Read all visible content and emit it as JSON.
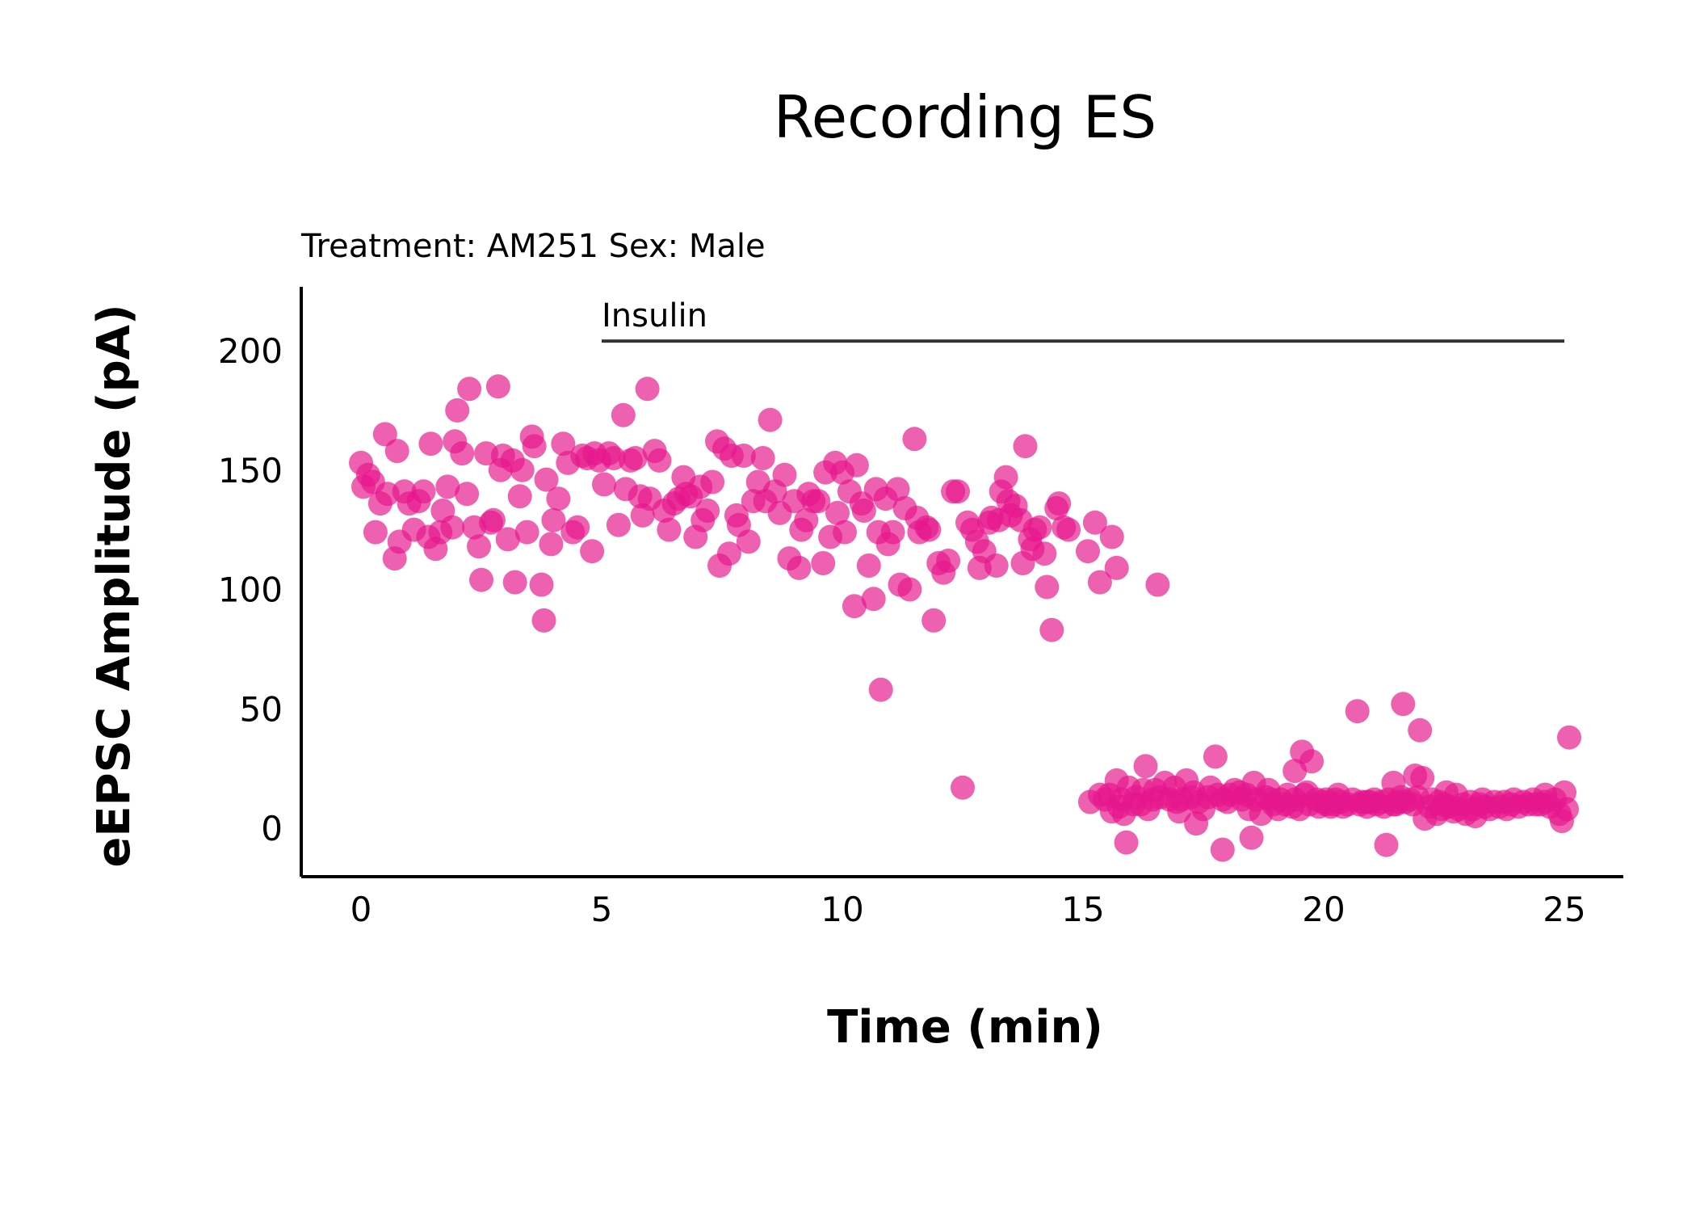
{
  "chart_data": {
    "type": "scatter",
    "title": "Recording ES",
    "subtitle": "Treatment: AM251  Sex: Male",
    "xlabel": "Time (min)",
    "ylabel": "eEPSC Amplitude (pA)",
    "xlim": [
      -1.2,
      26.2
    ],
    "ylim": [
      -20,
      225
    ],
    "xticks": [
      0,
      5,
      10,
      15,
      20,
      25
    ],
    "yticks": [
      0,
      50,
      100,
      150,
      200
    ],
    "grid": false,
    "legend": "none",
    "point_color": "#e6168c",
    "annotation": {
      "label": "Insulin",
      "x_start": 5,
      "x_end": 25,
      "y": 204
    },
    "points": [
      [
        0.0,
        153
      ],
      [
        0.05,
        143
      ],
      [
        0.15,
        148
      ],
      [
        0.25,
        145
      ],
      [
        0.3,
        124
      ],
      [
        0.4,
        136
      ],
      [
        0.5,
        165
      ],
      [
        0.55,
        140
      ],
      [
        0.7,
        113
      ],
      [
        0.75,
        158
      ],
      [
        0.8,
        120
      ],
      [
        0.9,
        141
      ],
      [
        1.0,
        136
      ],
      [
        1.1,
        125
      ],
      [
        1.2,
        137
      ],
      [
        1.3,
        141
      ],
      [
        1.4,
        122
      ],
      [
        1.45,
        161
      ],
      [
        1.55,
        117
      ],
      [
        1.65,
        124
      ],
      [
        1.7,
        133
      ],
      [
        1.8,
        143
      ],
      [
        1.9,
        126
      ],
      [
        1.95,
        162
      ],
      [
        2.0,
        175
      ],
      [
        2.1,
        157
      ],
      [
        2.2,
        140
      ],
      [
        2.25,
        184
      ],
      [
        2.35,
        126
      ],
      [
        2.45,
        118
      ],
      [
        2.5,
        104
      ],
      [
        2.6,
        157
      ],
      [
        2.7,
        128
      ],
      [
        2.75,
        129
      ],
      [
        2.85,
        185
      ],
      [
        2.9,
        150
      ],
      [
        2.95,
        156
      ],
      [
        3.05,
        121
      ],
      [
        3.15,
        154
      ],
      [
        3.2,
        103
      ],
      [
        3.3,
        139
      ],
      [
        3.35,
        150
      ],
      [
        3.45,
        124
      ],
      [
        3.55,
        164
      ],
      [
        3.6,
        160
      ],
      [
        3.75,
        102
      ],
      [
        3.8,
        87
      ],
      [
        3.85,
        146
      ],
      [
        3.95,
        119
      ],
      [
        4.0,
        129
      ],
      [
        4.1,
        138
      ],
      [
        4.2,
        161
      ],
      [
        4.3,
        153
      ],
      [
        4.4,
        124
      ],
      [
        4.5,
        126
      ],
      [
        4.6,
        156
      ],
      [
        4.7,
        155
      ],
      [
        4.8,
        116
      ],
      [
        4.85,
        157
      ],
      [
        4.95,
        154
      ],
      [
        5.05,
        144
      ],
      [
        5.15,
        157
      ],
      [
        5.25,
        155
      ],
      [
        5.35,
        127
      ],
      [
        5.45,
        173
      ],
      [
        5.5,
        142
      ],
      [
        5.6,
        154
      ],
      [
        5.7,
        155
      ],
      [
        5.8,
        139
      ],
      [
        5.85,
        131
      ],
      [
        5.95,
        184
      ],
      [
        6.0,
        138
      ],
      [
        6.1,
        158
      ],
      [
        6.2,
        154
      ],
      [
        6.3,
        133
      ],
      [
        6.4,
        125
      ],
      [
        6.5,
        136
      ],
      [
        6.6,
        138
      ],
      [
        6.7,
        147
      ],
      [
        6.75,
        140
      ],
      [
        6.85,
        139
      ],
      [
        6.95,
        122
      ],
      [
        7.05,
        143
      ],
      [
        7.1,
        129
      ],
      [
        7.2,
        133
      ],
      [
        7.3,
        145
      ],
      [
        7.4,
        162
      ],
      [
        7.45,
        110
      ],
      [
        7.55,
        159
      ],
      [
        7.65,
        115
      ],
      [
        7.7,
        156
      ],
      [
        7.8,
        131
      ],
      [
        7.85,
        127
      ],
      [
        7.95,
        156
      ],
      [
        8.05,
        120
      ],
      [
        8.15,
        137
      ],
      [
        8.25,
        145
      ],
      [
        8.35,
        155
      ],
      [
        8.4,
        137
      ],
      [
        8.5,
        171
      ],
      [
        8.6,
        141
      ],
      [
        8.7,
        132
      ],
      [
        8.8,
        148
      ],
      [
        8.9,
        113
      ],
      [
        9.0,
        137
      ],
      [
        9.1,
        109
      ],
      [
        9.15,
        125
      ],
      [
        9.25,
        129
      ],
      [
        9.3,
        140
      ],
      [
        9.4,
        137
      ],
      [
        9.5,
        137
      ],
      [
        9.6,
        111
      ],
      [
        9.65,
        149
      ],
      [
        9.75,
        122
      ],
      [
        9.85,
        153
      ],
      [
        9.9,
        132
      ],
      [
        10.0,
        149
      ],
      [
        10.05,
        124
      ],
      [
        10.15,
        141
      ],
      [
        10.25,
        93
      ],
      [
        10.3,
        152
      ],
      [
        10.4,
        136
      ],
      [
        10.45,
        133
      ],
      [
        10.55,
        110
      ],
      [
        10.65,
        96
      ],
      [
        10.7,
        142
      ],
      [
        10.75,
        124
      ],
      [
        10.8,
        58
      ],
      [
        10.9,
        138
      ],
      [
        10.95,
        119
      ],
      [
        11.05,
        124
      ],
      [
        11.15,
        142
      ],
      [
        11.2,
        102
      ],
      [
        11.3,
        134
      ],
      [
        11.4,
        100
      ],
      [
        11.5,
        163
      ],
      [
        11.55,
        130
      ],
      [
        11.6,
        124
      ],
      [
        11.75,
        126
      ],
      [
        11.8,
        125
      ],
      [
        11.9,
        87
      ],
      [
        12.0,
        111
      ],
      [
        12.1,
        107
      ],
      [
        12.2,
        112
      ],
      [
        12.3,
        141
      ],
      [
        12.4,
        141
      ],
      [
        12.5,
        17
      ],
      [
        12.6,
        128
      ],
      [
        12.7,
        125
      ],
      [
        12.8,
        120
      ],
      [
        12.85,
        109
      ],
      [
        12.95,
        116
      ],
      [
        13.05,
        128
      ],
      [
        13.1,
        130
      ],
      [
        13.2,
        110
      ],
      [
        13.25,
        129
      ],
      [
        13.3,
        141
      ],
      [
        13.4,
        147
      ],
      [
        13.45,
        137
      ],
      [
        13.5,
        131
      ],
      [
        13.6,
        135
      ],
      [
        13.7,
        129
      ],
      [
        13.75,
        111
      ],
      [
        13.8,
        160
      ],
      [
        13.9,
        121
      ],
      [
        13.95,
        117
      ],
      [
        14.0,
        125
      ],
      [
        14.1,
        126
      ],
      [
        14.2,
        115
      ],
      [
        14.25,
        101
      ],
      [
        14.35,
        83
      ],
      [
        14.45,
        134
      ],
      [
        14.5,
        136
      ],
      [
        14.6,
        126
      ],
      [
        14.7,
        125
      ],
      [
        15.1,
        116
      ],
      [
        15.25,
        128
      ],
      [
        15.35,
        103
      ],
      [
        15.6,
        122
      ],
      [
        15.7,
        109
      ],
      [
        16.55,
        102
      ],
      [
        15.15,
        11
      ],
      [
        15.35,
        14
      ],
      [
        15.45,
        12
      ],
      [
        15.55,
        14
      ],
      [
        15.6,
        7
      ],
      [
        15.7,
        20
      ],
      [
        15.75,
        9
      ],
      [
        15.8,
        12
      ],
      [
        15.85,
        6
      ],
      [
        15.95,
        17
      ],
      [
        16.05,
        10
      ],
      [
        16.1,
        13
      ],
      [
        16.2,
        10
      ],
      [
        16.25,
        16
      ],
      [
        16.35,
        8
      ],
      [
        16.45,
        12
      ],
      [
        16.5,
        16
      ],
      [
        16.6,
        13
      ],
      [
        16.7,
        19
      ],
      [
        16.8,
        12
      ],
      [
        16.9,
        17
      ],
      [
        16.95,
        11
      ],
      [
        17.0,
        7
      ],
      [
        17.05,
        12
      ],
      [
        17.15,
        20
      ],
      [
        17.25,
        13
      ],
      [
        17.35,
        2
      ],
      [
        17.4,
        11
      ],
      [
        17.5,
        8
      ],
      [
        17.6,
        13
      ],
      [
        17.65,
        17
      ],
      [
        17.75,
        30
      ],
      [
        17.8,
        14
      ],
      [
        17.9,
        12
      ],
      [
        18.0,
        11
      ],
      [
        18.05,
        14
      ],
      [
        18.15,
        16
      ],
      [
        18.25,
        15
      ],
      [
        18.3,
        12
      ],
      [
        18.4,
        14
      ],
      [
        18.45,
        8
      ],
      [
        18.55,
        19
      ],
      [
        18.6,
        12
      ],
      [
        18.7,
        6
      ],
      [
        18.8,
        13
      ],
      [
        18.85,
        16
      ],
      [
        18.9,
        12
      ],
      [
        18.95,
        10
      ],
      [
        19.05,
        8
      ],
      [
        19.1,
        12
      ],
      [
        19.2,
        10
      ],
      [
        19.25,
        14
      ],
      [
        19.35,
        9
      ],
      [
        19.4,
        12
      ],
      [
        19.5,
        8
      ],
      [
        19.55,
        32
      ],
      [
        19.65,
        15
      ],
      [
        19.7,
        10
      ],
      [
        19.75,
        28
      ],
      [
        19.85,
        12
      ],
      [
        19.9,
        9
      ],
      [
        20.0,
        11
      ],
      [
        20.05,
        10
      ],
      [
        20.15,
        9
      ],
      [
        20.2,
        10
      ],
      [
        20.25,
        12
      ],
      [
        20.35,
        11
      ],
      [
        20.4,
        9
      ],
      [
        20.5,
        10
      ],
      [
        20.6,
        12
      ],
      [
        20.7,
        49
      ],
      [
        20.75,
        10
      ],
      [
        20.8,
        11
      ],
      [
        20.9,
        9
      ],
      [
        20.95,
        11
      ],
      [
        21.05,
        12
      ],
      [
        21.1,
        10
      ],
      [
        21.2,
        11
      ],
      [
        21.25,
        9
      ],
      [
        21.3,
        -7
      ],
      [
        21.35,
        12
      ],
      [
        21.45,
        10
      ],
      [
        21.55,
        11
      ],
      [
        21.6,
        13
      ],
      [
        21.65,
        52
      ],
      [
        21.7,
        11
      ],
      [
        21.8,
        12
      ],
      [
        21.85,
        10
      ],
      [
        21.9,
        22
      ],
      [
        21.95,
        13
      ],
      [
        22.0,
        41
      ],
      [
        22.05,
        21
      ],
      [
        22.1,
        4
      ],
      [
        22.2,
        9
      ],
      [
        22.25,
        12
      ],
      [
        22.35,
        6
      ],
      [
        22.4,
        11
      ],
      [
        22.45,
        8
      ],
      [
        22.5,
        10
      ],
      [
        22.6,
        9
      ],
      [
        22.7,
        7
      ],
      [
        22.75,
        14
      ],
      [
        22.8,
        8
      ],
      [
        22.9,
        10
      ],
      [
        22.95,
        6
      ],
      [
        23.05,
        11
      ],
      [
        23.1,
        8
      ],
      [
        23.15,
        5
      ],
      [
        23.25,
        10
      ],
      [
        23.3,
        12
      ],
      [
        23.35,
        9
      ],
      [
        23.45,
        8
      ],
      [
        23.55,
        11
      ],
      [
        23.65,
        9
      ],
      [
        23.75,
        11
      ],
      [
        23.8,
        8
      ],
      [
        23.9,
        10
      ],
      [
        23.95,
        12
      ],
      [
        24.05,
        9
      ],
      [
        24.15,
        11
      ],
      [
        24.25,
        10
      ],
      [
        24.35,
        12
      ],
      [
        24.4,
        10
      ],
      [
        24.5,
        10
      ],
      [
        24.6,
        11
      ],
      [
        24.7,
        9
      ],
      [
        24.8,
        12
      ],
      [
        24.9,
        6
      ],
      [
        24.95,
        3
      ],
      [
        25.0,
        15
      ],
      [
        25.05,
        8
      ],
      [
        25.1,
        38
      ],
      [
        15.9,
        -6
      ],
      [
        17.9,
        -9
      ],
      [
        18.5,
        -4
      ],
      [
        19.4,
        24
      ],
      [
        20.3,
        14
      ],
      [
        21.45,
        19
      ],
      [
        24.6,
        14
      ],
      [
        22.55,
        15
      ],
      [
        17.3,
        15
      ],
      [
        16.3,
        26
      ],
      [
        20.05,
        12
      ],
      [
        19.6,
        14
      ],
      [
        20.9,
        11
      ],
      [
        21.5,
        10
      ]
    ]
  }
}
